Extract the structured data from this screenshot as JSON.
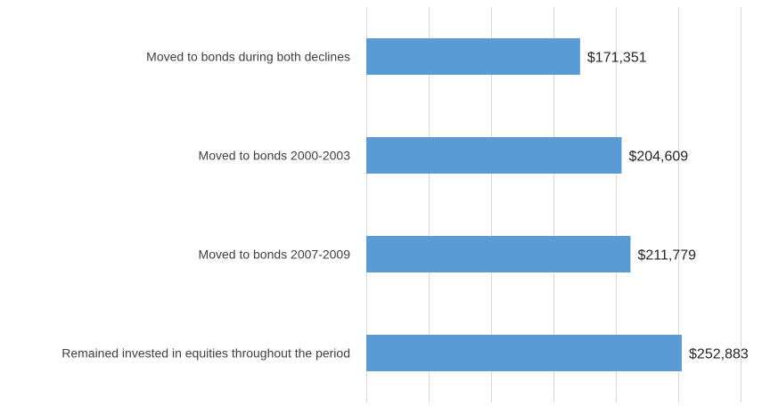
{
  "chart_data": {
    "type": "bar",
    "orientation": "horizontal",
    "title": "",
    "xlabel": "",
    "ylabel": "",
    "categories": [
      "Moved to bonds during both declines",
      "Moved to bonds 2000-2003",
      "Moved to bonds 2007-2009",
      "Remained invested in equities throughout the period"
    ],
    "values": [
      171351,
      204609,
      211779,
      252883
    ],
    "value_labels": [
      "$171,351",
      "$204,609",
      "$211,779",
      "$252,883"
    ],
    "xlim": [
      0,
      300000
    ],
    "x_grid_step": 50000,
    "x_tick_labels_shown": false,
    "grid": true,
    "legend": "none",
    "bar_color": "#5b9bd5",
    "grid_color": "#d9d9d9"
  }
}
